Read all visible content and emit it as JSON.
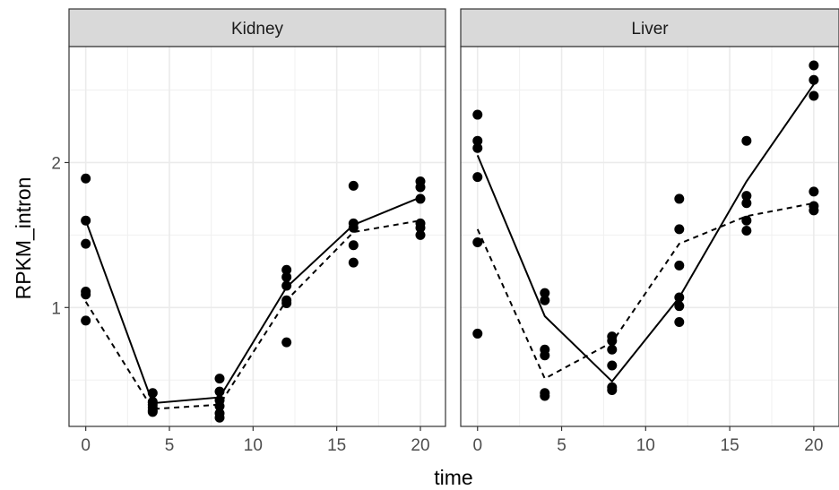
{
  "chart_data": {
    "type": "scatter",
    "xlabel": "time",
    "ylabel": "RPKM_intron",
    "x_ticks": [
      0,
      5,
      10,
      15,
      20
    ],
    "y_ticks": [
      1,
      2
    ],
    "xlim": [
      -1,
      21.5
    ],
    "ylim": [
      0.18,
      2.8
    ],
    "grid": true,
    "legend": "none",
    "panels": [
      {
        "label": "Kidney",
        "points": [
          [
            0,
            1.89
          ],
          [
            0,
            1.6
          ],
          [
            0,
            1.44
          ],
          [
            0,
            1.11
          ],
          [
            0,
            1.09
          ],
          [
            0,
            0.91
          ],
          [
            4,
            0.41
          ],
          [
            4,
            0.35
          ],
          [
            4,
            0.33
          ],
          [
            4,
            0.31
          ],
          [
            4,
            0.29
          ],
          [
            4,
            0.28
          ],
          [
            8,
            0.51
          ],
          [
            8,
            0.42
          ],
          [
            8,
            0.36
          ],
          [
            8,
            0.32
          ],
          [
            8,
            0.27
          ],
          [
            8,
            0.24
          ],
          [
            12,
            1.26
          ],
          [
            12,
            1.21
          ],
          [
            12,
            1.15
          ],
          [
            12,
            1.05
          ],
          [
            12,
            1.03
          ],
          [
            12,
            0.76
          ],
          [
            16,
            1.84
          ],
          [
            16,
            1.58
          ],
          [
            16,
            1.55
          ],
          [
            16,
            1.43
          ],
          [
            16,
            1.31
          ],
          [
            20,
            1.87
          ],
          [
            20,
            1.83
          ],
          [
            20,
            1.75
          ],
          [
            20,
            1.58
          ],
          [
            20,
            1.55
          ],
          [
            20,
            1.5
          ]
        ],
        "solid_line": [
          [
            0,
            1.6
          ],
          [
            4,
            0.34
          ],
          [
            8,
            0.38
          ],
          [
            12,
            1.14
          ],
          [
            16,
            1.57
          ],
          [
            20,
            1.76
          ]
        ],
        "dashed_line": [
          [
            0,
            1.04
          ],
          [
            4,
            0.3
          ],
          [
            8,
            0.33
          ],
          [
            12,
            1.05
          ],
          [
            16,
            1.52
          ],
          [
            20,
            1.6
          ]
        ]
      },
      {
        "label": "Liver",
        "points": [
          [
            0,
            2.33
          ],
          [
            0,
            2.15
          ],
          [
            0,
            2.1
          ],
          [
            0,
            1.9
          ],
          [
            0,
            1.45
          ],
          [
            0,
            0.82
          ],
          [
            4,
            1.1
          ],
          [
            4,
            1.05
          ],
          [
            4,
            0.71
          ],
          [
            4,
            0.67
          ],
          [
            4,
            0.41
          ],
          [
            4,
            0.39
          ],
          [
            8,
            0.8
          ],
          [
            8,
            0.77
          ],
          [
            8,
            0.71
          ],
          [
            8,
            0.6
          ],
          [
            8,
            0.45
          ],
          [
            8,
            0.43
          ],
          [
            12,
            1.75
          ],
          [
            12,
            1.54
          ],
          [
            12,
            1.29
          ],
          [
            12,
            1.07
          ],
          [
            12,
            1.01
          ],
          [
            12,
            0.9
          ],
          [
            16,
            2.15
          ],
          [
            16,
            1.77
          ],
          [
            16,
            1.72
          ],
          [
            16,
            1.6
          ],
          [
            16,
            1.53
          ],
          [
            20,
            2.67
          ],
          [
            20,
            2.57
          ],
          [
            20,
            2.46
          ],
          [
            20,
            1.8
          ],
          [
            20,
            1.7
          ],
          [
            20,
            1.67
          ]
        ],
        "solid_line": [
          [
            0,
            2.05
          ],
          [
            4,
            0.94
          ],
          [
            8,
            0.49
          ],
          [
            12,
            1.07
          ],
          [
            16,
            1.87
          ],
          [
            20,
            2.54
          ]
        ],
        "dashed_line": [
          [
            0,
            1.54
          ],
          [
            4,
            0.51
          ],
          [
            8,
            0.76
          ],
          [
            12,
            1.44
          ],
          [
            16,
            1.63
          ],
          [
            20,
            1.72
          ]
        ]
      }
    ]
  }
}
